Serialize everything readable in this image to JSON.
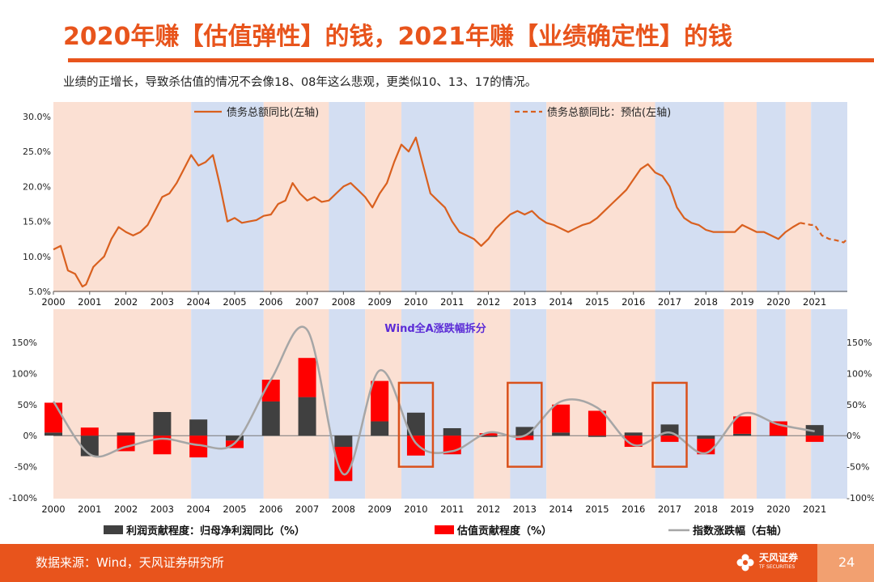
{
  "title": "2020年赚【估值弹性】的钱，2021年赚【业绩确定性】的钱",
  "subtitle": "业绩的正增长，导致杀估值的情况不会像18、08年这么悲观，更类似10、13、17的情况。",
  "footer": {
    "source": "数据来源：Wind，天风证券研究所",
    "logo_name": "天风证券",
    "logo_sub": "TF SECURITIES",
    "page_number": "24"
  },
  "colors": {
    "accent": "#e8541c",
    "pink_band": "#fbe0d3",
    "blue_band": "#d3def2",
    "debt_line": "#d9601f",
    "profit_bar": "#404040",
    "valuation_bar": "#ff0000",
    "index_line": "#a6a6a6",
    "highlight_box": "#d9511c"
  },
  "chart_data": [
    {
      "type": "line",
      "title": "",
      "xlabel": "",
      "ylabel": "",
      "ylim": [
        5,
        30
      ],
      "yticks": [
        "5.0%",
        "10.0%",
        "15.0%",
        "20.0%",
        "25.0%",
        "30.0%"
      ],
      "xlim": [
        2000,
        2021.9
      ],
      "categories": [
        "2000",
        "2001",
        "2002",
        "2003",
        "2004",
        "2005",
        "2006",
        "2007",
        "2008",
        "2009",
        "2010",
        "2011",
        "2012",
        "2013",
        "2014",
        "2015",
        "2016",
        "2017",
        "2018",
        "2019",
        "2020",
        "2021"
      ],
      "legend": [
        "债务总额同比(左轴)",
        "债务总额同比：预估(左轴)"
      ],
      "regimes": [
        {
          "from": 2000,
          "to": 2003.8,
          "type": "pink"
        },
        {
          "from": 2003.8,
          "to": 2005.8,
          "type": "blue"
        },
        {
          "from": 2005.8,
          "to": 2007.6,
          "type": "pink"
        },
        {
          "from": 2007.6,
          "to": 2008.6,
          "type": "blue"
        },
        {
          "from": 2008.6,
          "to": 2009.6,
          "type": "pink"
        },
        {
          "from": 2009.6,
          "to": 2011.6,
          "type": "blue"
        },
        {
          "from": 2011.6,
          "to": 2012.6,
          "type": "pink"
        },
        {
          "from": 2012.6,
          "to": 2013.6,
          "type": "blue"
        },
        {
          "from": 2013.6,
          "to": 2016.6,
          "type": "pink"
        },
        {
          "from": 2016.6,
          "to": 2018.5,
          "type": "blue"
        },
        {
          "from": 2018.5,
          "to": 2019.4,
          "type": "pink"
        },
        {
          "from": 2019.4,
          "to": 2020.2,
          "type": "blue"
        },
        {
          "from": 2020.2,
          "to": 2020.9,
          "type": "pink"
        },
        {
          "from": 2020.9,
          "to": 2021.9,
          "type": "blue"
        }
      ],
      "series": [
        {
          "name": "债务总额同比(左轴)",
          "style": "solid",
          "x": [
            2000.0,
            2000.2,
            2000.4,
            2000.6,
            2000.8,
            2000.9,
            2001.1,
            2001.2,
            2001.4,
            2001.6,
            2001.8,
            2002.0,
            2002.2,
            2002.4,
            2002.6,
            2002.8,
            2003.0,
            2003.2,
            2003.4,
            2003.6,
            2003.8,
            2004.0,
            2004.2,
            2004.4,
            2004.6,
            2004.8,
            2005.0,
            2005.2,
            2005.4,
            2005.6,
            2005.8,
            2006.0,
            2006.2,
            2006.4,
            2006.6,
            2006.8,
            2007.0,
            2007.2,
            2007.4,
            2007.6,
            2007.8,
            2008.0,
            2008.2,
            2008.4,
            2008.6,
            2008.8,
            2009.0,
            2009.2,
            2009.4,
            2009.6,
            2009.8,
            2010.0,
            2010.2,
            2010.4,
            2010.6,
            2010.8,
            2011.0,
            2011.2,
            2011.4,
            2011.6,
            2011.8,
            2012.0,
            2012.2,
            2012.4,
            2012.6,
            2012.8,
            2013.0,
            2013.2,
            2013.4,
            2013.6,
            2013.8,
            2014.0,
            2014.2,
            2014.4,
            2014.6,
            2014.8,
            2015.0,
            2015.2,
            2015.4,
            2015.6,
            2015.8,
            2016.0,
            2016.2,
            2016.4,
            2016.6,
            2016.8,
            2017.0,
            2017.2,
            2017.4,
            2017.6,
            2017.8,
            2018.0,
            2018.2,
            2018.4,
            2018.6,
            2018.8,
            2019.0,
            2019.2,
            2019.4,
            2019.6,
            2019.8,
            2020.0,
            2020.2,
            2020.4,
            2020.6
          ],
          "y": [
            11.0,
            11.5,
            8.0,
            7.5,
            5.7,
            6.0,
            8.5,
            9.0,
            10.0,
            12.5,
            14.2,
            13.5,
            13.0,
            13.5,
            14.5,
            16.5,
            18.5,
            19.0,
            20.5,
            22.5,
            24.5,
            23.0,
            23.5,
            24.5,
            20.0,
            15.0,
            15.5,
            14.8,
            15.0,
            15.2,
            15.8,
            16.0,
            17.5,
            18.0,
            20.5,
            19.0,
            18.0,
            18.5,
            17.8,
            18.0,
            19.0,
            20.0,
            20.5,
            19.5,
            18.5,
            17.0,
            19.0,
            20.5,
            23.5,
            26.0,
            25.0,
            27.0,
            23.0,
            19.0,
            18.0,
            17.0,
            15.0,
            13.5,
            13.0,
            12.5,
            11.5,
            12.5,
            14.0,
            15.0,
            16.0,
            16.5,
            16.0,
            16.5,
            15.5,
            14.8,
            14.5,
            14.0,
            13.5,
            14.0,
            14.5,
            14.8,
            15.5,
            16.5,
            17.5,
            18.5,
            19.5,
            21.0,
            22.5,
            23.2,
            22.0,
            21.5,
            20.0,
            17.0,
            15.5,
            14.8,
            14.5,
            13.8,
            13.5,
            13.5,
            13.5,
            13.5,
            14.5,
            14.0,
            13.5,
            13.5,
            13.0,
            12.5,
            13.5,
            14.2,
            14.8
          ]
        },
        {
          "name": "债务总额同比：预估(左轴)",
          "style": "dashed",
          "x": [
            2020.6,
            2020.9,
            2021.0,
            2021.2,
            2021.4,
            2021.6,
            2021.8,
            2021.9
          ],
          "y": [
            14.8,
            14.5,
            14.5,
            13.0,
            12.5,
            12.3,
            12.0,
            12.5
          ]
        }
      ]
    },
    {
      "type": "bar",
      "title": "Wind全A涨跌幅拆分",
      "xlabel": "",
      "ylabel": "",
      "ylim": [
        -100,
        150
      ],
      "yticks": [
        "-100%",
        "-50%",
        "0%",
        "50%",
        "100%",
        "150%"
      ],
      "categories": [
        "2000",
        "2001",
        "2002",
        "2003",
        "2004",
        "2005",
        "2006",
        "2007",
        "2008",
        "2009",
        "2010",
        "2011",
        "2012",
        "2013",
        "2014",
        "2015",
        "2016",
        "2017",
        "2018",
        "2019",
        "2020",
        "2021"
      ],
      "legend": [
        "利润贡献程度：归母净利润同比（%）",
        "估值贡献程度（%）",
        "指数涨跌幅（右轴）"
      ],
      "highlighted": [
        "2010",
        "2013",
        "2017"
      ],
      "series": [
        {
          "name": "利润贡献程度：归母净利润同比（%）",
          "values": [
            5,
            -33,
            5,
            38,
            26,
            -8,
            55,
            62,
            -18,
            23,
            37,
            12,
            -2,
            14,
            5,
            -2,
            5,
            18,
            -5,
            3,
            0,
            17
          ]
        },
        {
          "name": "估值贡献程度（%）",
          "values": [
            48,
            13,
            -25,
            -30,
            -35,
            -12,
            35,
            63,
            -55,
            65,
            -32,
            -30,
            4,
            -7,
            45,
            40,
            -18,
            -10,
            -25,
            28,
            23,
            -10
          ]
        },
        {
          "name": "指数涨跌幅（右轴）",
          "values": [
            55,
            -30,
            -18,
            -5,
            -15,
            -12,
            90,
            170,
            -62,
            105,
            -12,
            -25,
            5,
            0,
            55,
            45,
            -15,
            5,
            -28,
            35,
            18,
            7
          ]
        }
      ]
    }
  ]
}
